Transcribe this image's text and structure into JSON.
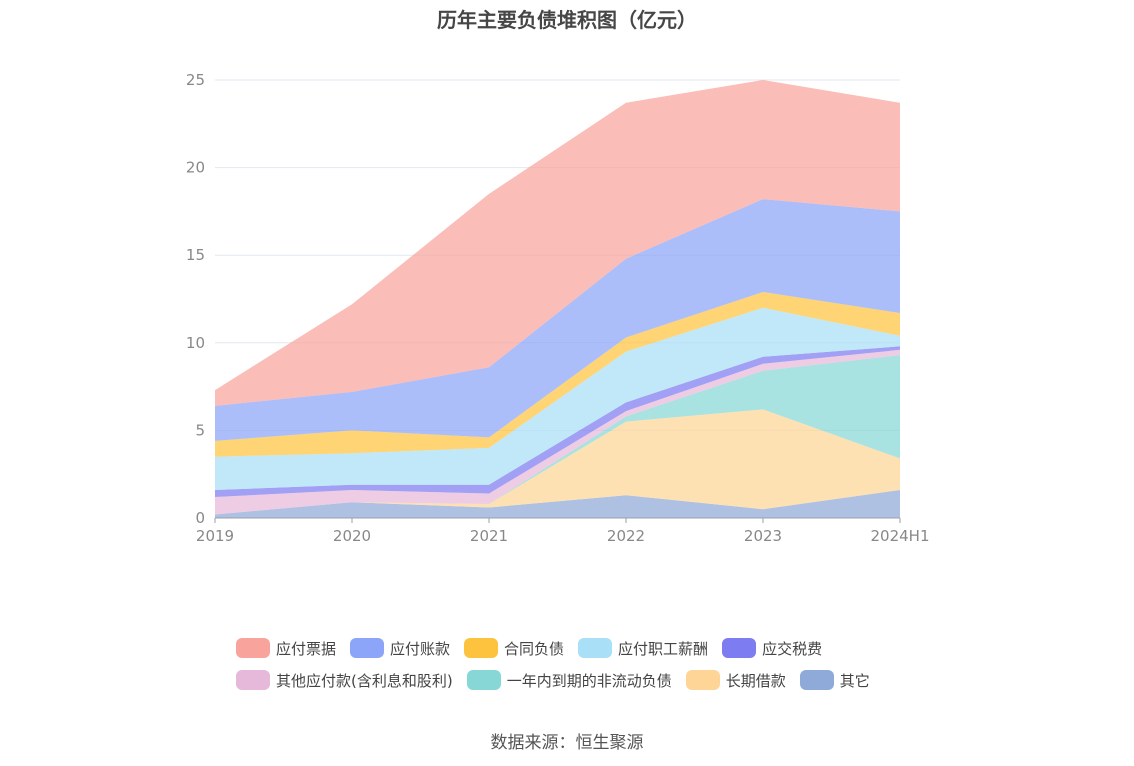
{
  "chart_data": {
    "type": "area",
    "stacked": true,
    "title": "历年主要负债堆积图（亿元）",
    "categories": [
      "2019",
      "2020",
      "2021",
      "2022",
      "2023",
      "2024H1"
    ],
    "ylim": [
      0,
      25
    ],
    "yticks": [
      0,
      5,
      10,
      15,
      20,
      25
    ],
    "grid": true,
    "legend_position": "bottom",
    "series": [
      {
        "name": "其它",
        "color": "#8fa9d8",
        "values": [
          0.2,
          0.9,
          0.6,
          1.3,
          0.5,
          1.6
        ]
      },
      {
        "name": "长期借款",
        "color": "#fed596",
        "values": [
          0.0,
          0.0,
          0.2,
          4.2,
          5.7,
          1.8
        ]
      },
      {
        "name": "一年内到期的非流动负债",
        "color": "#86d7d6",
        "values": [
          0.0,
          0.0,
          0.0,
          0.3,
          2.2,
          5.9
        ]
      },
      {
        "name": "其他应付款(含利息和股利)",
        "color": "#e6b8d9",
        "values": [
          1.0,
          0.7,
          0.6,
          0.3,
          0.4,
          0.3
        ]
      },
      {
        "name": "应交税费",
        "color": "#7d7cf0",
        "values": [
          0.4,
          0.3,
          0.5,
          0.5,
          0.4,
          0.2
        ]
      },
      {
        "name": "应付职工薪酬",
        "color": "#a9dff7",
        "values": [
          1.9,
          1.8,
          2.1,
          2.9,
          2.8,
          0.6
        ]
      },
      {
        "name": "合同负债",
        "color": "#fec33e",
        "values": [
          0.9,
          1.3,
          0.6,
          0.8,
          0.9,
          1.3
        ]
      },
      {
        "name": "应付账款",
        "color": "#8ca5f8",
        "values": [
          2.0,
          2.2,
          4.0,
          4.5,
          5.3,
          5.8
        ]
      },
      {
        "name": "应付票据",
        "color": "#f8a49c",
        "values": [
          0.9,
          5.0,
          9.9,
          8.9,
          6.8,
          6.2
        ]
      }
    ]
  },
  "legend": {
    "row1": [
      {
        "label": "应付票据",
        "color": "#f8a49c"
      },
      {
        "label": "应付账款",
        "color": "#8ca5f8"
      },
      {
        "label": "合同负债",
        "color": "#fec33e"
      },
      {
        "label": "应付职工薪酬",
        "color": "#a9dff7"
      },
      {
        "label": "应交税费",
        "color": "#7d7cf0"
      }
    ],
    "row2": [
      {
        "label": "其他应付款(含利息和股利)",
        "color": "#e6b8d9"
      },
      {
        "label": "一年内到期的非流动负债",
        "color": "#86d7d6"
      },
      {
        "label": "长期借款",
        "color": "#fed596"
      },
      {
        "label": "其它",
        "color": "#8fa9d8"
      }
    ]
  },
  "source": "数据来源：恒生聚源"
}
